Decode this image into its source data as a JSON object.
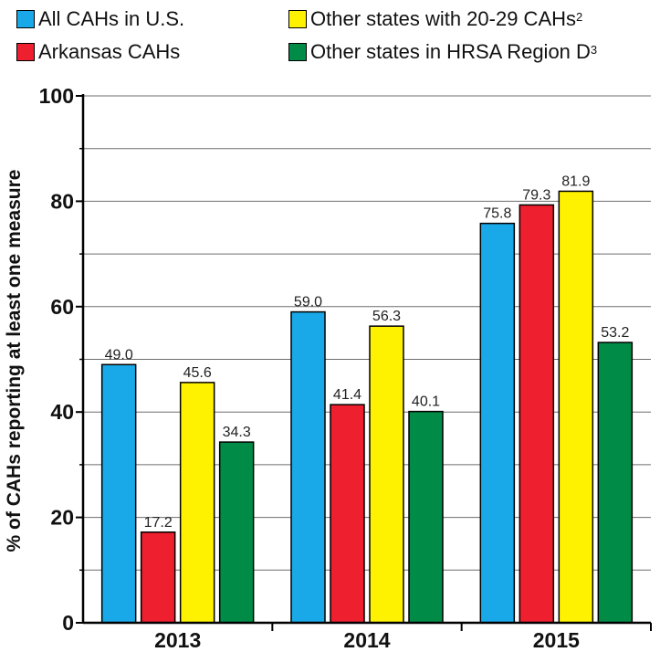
{
  "legend": [
    {
      "label": "All CAHs in U.S.",
      "sup": "",
      "color": "#1aa9e8"
    },
    {
      "label": "Arkansas CAHs",
      "sup": "",
      "color": "#ee1f2e"
    },
    {
      "label": "Other states with 20-29 CAHs",
      "sup": "2",
      "color": "#fff200"
    },
    {
      "label": "Other states in HRSA Region D",
      "sup": "3",
      "color": "#008b47"
    }
  ],
  "chart_data": {
    "type": "bar",
    "categories": [
      "2013",
      "2014",
      "2015"
    ],
    "series": [
      {
        "name": "All CAHs in U.S.",
        "values": [
          49.0,
          59.0,
          75.8
        ],
        "color": "#1aa9e8"
      },
      {
        "name": "Arkansas CAHs",
        "values": [
          17.2,
          41.4,
          79.3
        ],
        "color": "#ee1f2e"
      },
      {
        "name": "Other states with 20-29 CAHs",
        "values": [
          45.6,
          56.3,
          81.9
        ],
        "color": "#fff200"
      },
      {
        "name": "Other states in HRSA Region D",
        "values": [
          34.3,
          40.1,
          53.2
        ],
        "color": "#008b47"
      }
    ],
    "ylabel": "% of CAHs reporting at least one measure",
    "xlabel": "",
    "ylim": [
      0,
      100
    ],
    "yticks": [
      0,
      20,
      40,
      60,
      80,
      100
    ],
    "grid": true,
    "legend_position": "top"
  }
}
